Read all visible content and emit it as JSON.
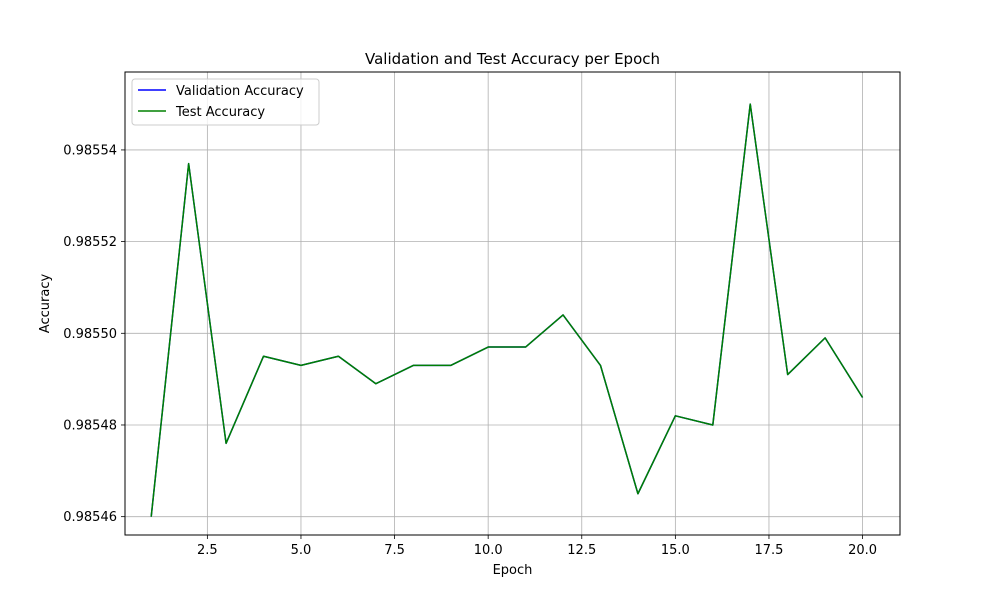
{
  "chart_data": {
    "type": "line",
    "title": "Validation and Test Accuracy per Epoch",
    "xlabel": "Epoch",
    "ylabel": "Accuracy",
    "xlim": [
      0.3,
      21.0
    ],
    "ylim": [
      0.985456,
      0.985557
    ],
    "xticks": [
      2.5,
      5.0,
      7.5,
      10.0,
      12.5,
      15.0,
      17.5,
      20.0
    ],
    "xtick_labels": [
      "2.5",
      "5.0",
      "7.5",
      "10.0",
      "12.5",
      "15.0",
      "17.5",
      "20.0"
    ],
    "yticks": [
      0.98546,
      0.98548,
      0.9855,
      0.98552,
      0.98554
    ],
    "ytick_labels": [
      "0.98546",
      "0.98548",
      "0.98550",
      "0.98552",
      "0.98554"
    ],
    "grid": true,
    "legend_position": "top-left",
    "x": [
      1,
      2,
      3,
      4,
      5,
      6,
      7,
      8,
      9,
      10,
      11,
      12,
      13,
      14,
      15,
      16,
      17,
      18,
      19,
      20
    ],
    "series": [
      {
        "name": "Validation Accuracy",
        "color": "#0000ff",
        "values": [
          0.98546,
          0.985537,
          0.985476,
          0.985495,
          0.985493,
          0.985495,
          0.985489,
          0.985493,
          0.985493,
          0.985497,
          0.985497,
          0.985504,
          0.985493,
          0.985465,
          0.985482,
          0.98548,
          0.98555,
          0.985491,
          0.985499,
          0.985486
        ]
      },
      {
        "name": "Test Accuracy",
        "color": "#008000",
        "values": [
          0.98546,
          0.985537,
          0.985476,
          0.985495,
          0.985493,
          0.985495,
          0.985489,
          0.985493,
          0.985493,
          0.985497,
          0.985497,
          0.985504,
          0.985493,
          0.985465,
          0.985482,
          0.98548,
          0.98555,
          0.985491,
          0.985499,
          0.985486
        ]
      }
    ]
  }
}
